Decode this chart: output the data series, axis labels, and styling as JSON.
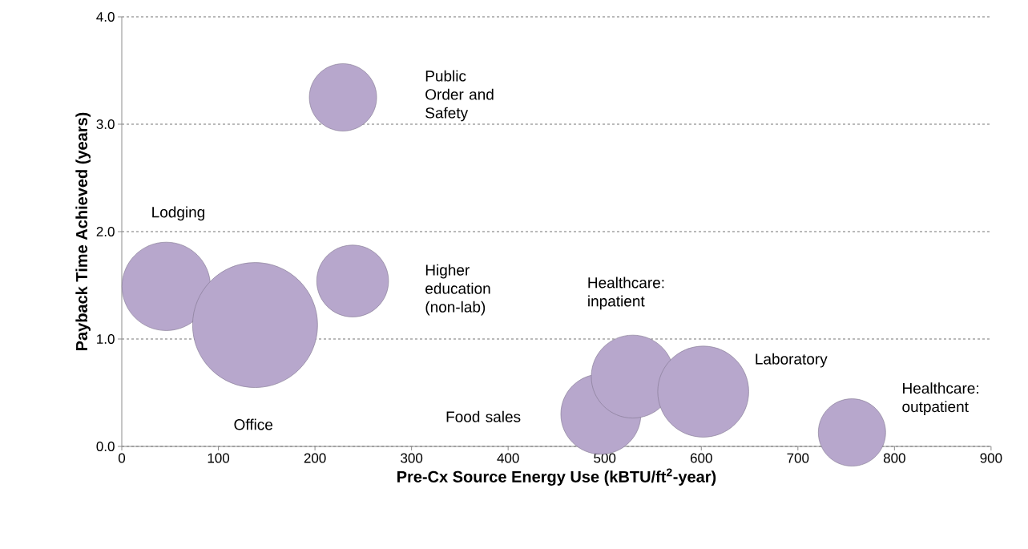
{
  "chart_data": {
    "type": "bubble",
    "xlabel": "Pre-Cx Source Energy Use (kBTU/ft$^{2}$-year)",
    "ylabel": "Payback Time Achieved (years)",
    "x": [
      229,
      46,
      138,
      239,
      496,
      529,
      602,
      756
    ],
    "values": [
      3.25,
      1.49,
      1.13,
      1.54,
      0.3,
      0.65,
      0.51,
      0.13
    ],
    "sizes": [
      0.29,
      0.5,
      1,
      0.33,
      0.41,
      0.44,
      0.53,
      0.29
    ],
    "color": "#b7a7cc",
    "xlim": [
      0,
      900
    ],
    "xticks": [
      0,
      100,
      200,
      300,
      400,
      500,
      600,
      700,
      800,
      900
    ],
    "ylim": [
      0,
      4
    ],
    "yticks": [
      {
        "value": 0,
        "label": "0.0"
      },
      {
        "value": 1,
        "label": "1.0"
      },
      {
        "value": 2,
        "label": "2.0"
      },
      {
        "value": 3,
        "label": "3.0"
      },
      {
        "value": 4,
        "label": "4.0"
      }
    ],
    "grid": "y",
    "annotations": [
      "Public Order and Safety",
      "Lodging",
      "Office",
      "Higher education (non-lab)",
      "Food sales",
      "Healthcare: inpatient",
      "Laboratory",
      "Healthcare: outpatient"
    ]
  }
}
